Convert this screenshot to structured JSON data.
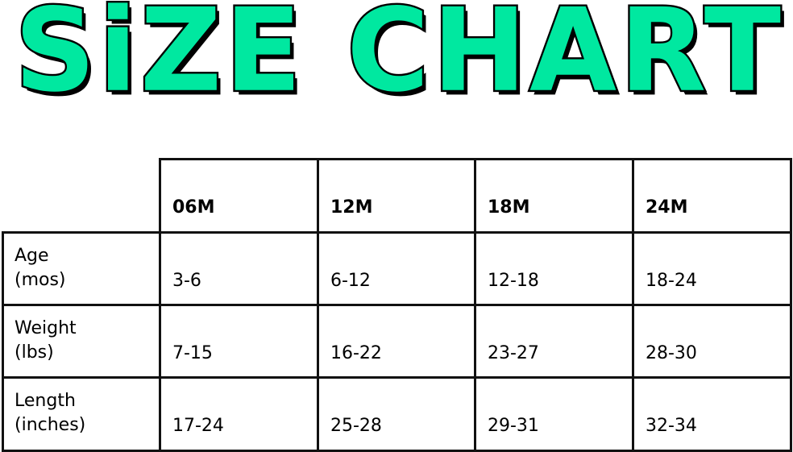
{
  "title": "SiZE CHART",
  "title_color": "#00e8a0",
  "table": {
    "columns": [
      "06M",
      "12M",
      "18M",
      "24M"
    ],
    "rows": [
      {
        "label_line1": "Age",
        "label_line2": "(mos)",
        "values": [
          "3-6",
          "6-12",
          "12-18",
          "18-24"
        ]
      },
      {
        "label_line1": "Weight",
        "label_line2": "(lbs)",
        "values": [
          "7-15",
          "16-22",
          "23-27",
          "28-30"
        ]
      },
      {
        "label_line1": "Length",
        "label_line2": "(inches)",
        "values": [
          "17-24",
          "25-28",
          "29-31",
          "32-34"
        ]
      }
    ]
  }
}
